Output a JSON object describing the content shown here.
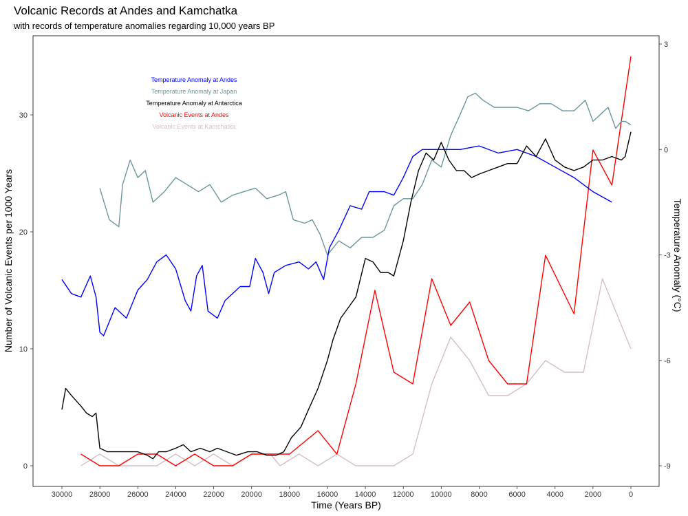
{
  "chart_data": {
    "type": "line",
    "title": "Volcanic Records at Andes and Kamchatka",
    "subtitle": "with records of temperature anomalies regarding 10,000 years BP",
    "xlabel": "Time (Years BP)",
    "ylabel_left": "Number of Volcanic Events per 1000 Years",
    "ylabel_right": "Temperature Anomaly (°C)",
    "x_reversed": true,
    "xlim": [
      30000,
      0
    ],
    "ylim_left": [
      0,
      35
    ],
    "ylim_right": [
      -9,
      3
    ],
    "x_ticks": [
      30000,
      28000,
      26000,
      24000,
      22000,
      20000,
      18000,
      16000,
      14000,
      12000,
      10000,
      8000,
      6000,
      4000,
      2000,
      0
    ],
    "y_ticks_left": [
      0,
      10,
      20,
      30
    ],
    "y_ticks_right": [
      -9,
      -6,
      -3,
      0,
      3
    ],
    "grid": false,
    "legend_position": "top-left",
    "series": [
      {
        "name": "Temperature Anomaly at Andes",
        "axis": "right",
        "color": "#0000ff",
        "points": [
          [
            30000,
            -3.7
          ],
          [
            29500,
            -4.1
          ],
          [
            29000,
            -4.2
          ],
          [
            28500,
            -3.6
          ],
          [
            28200,
            -4.2
          ],
          [
            28000,
            -5.2
          ],
          [
            27800,
            -5.3
          ],
          [
            27200,
            -4.5
          ],
          [
            26600,
            -4.8
          ],
          [
            26000,
            -4.0
          ],
          [
            25500,
            -3.7
          ],
          [
            25000,
            -3.2
          ],
          [
            24500,
            -3.0
          ],
          [
            24000,
            -3.4
          ],
          [
            23500,
            -4.3
          ],
          [
            23200,
            -4.6
          ],
          [
            22900,
            -3.6
          ],
          [
            22600,
            -3.3
          ],
          [
            22300,
            -4.6
          ],
          [
            21800,
            -4.8
          ],
          [
            21400,
            -4.3
          ],
          [
            20600,
            -3.9
          ],
          [
            20100,
            -3.9
          ],
          [
            19800,
            -3.1
          ],
          [
            19400,
            -3.5
          ],
          [
            19100,
            -4.1
          ],
          [
            18800,
            -3.5
          ],
          [
            18200,
            -3.3
          ],
          [
            17500,
            -3.2
          ],
          [
            17000,
            -3.4
          ],
          [
            16600,
            -3.2
          ],
          [
            16200,
            -3.7
          ],
          [
            15900,
            -2.8
          ],
          [
            15400,
            -2.3
          ],
          [
            14800,
            -1.6
          ],
          [
            14200,
            -1.7
          ],
          [
            13800,
            -1.2
          ],
          [
            13000,
            -1.2
          ],
          [
            12500,
            -1.3
          ],
          [
            12000,
            -0.8
          ],
          [
            11500,
            -0.2
          ],
          [
            11000,
            0.0
          ],
          [
            10000,
            0.0
          ],
          [
            9000,
            0.0
          ],
          [
            8000,
            0.1
          ],
          [
            7000,
            -0.1
          ],
          [
            6000,
            0.0
          ],
          [
            5000,
            -0.2
          ],
          [
            4000,
            -0.5
          ],
          [
            3000,
            -0.8
          ],
          [
            2000,
            -1.2
          ],
          [
            1000,
            -1.5
          ]
        ]
      },
      {
        "name": "Temperature Anomaly at Japan",
        "axis": "right",
        "color": "#6c969d",
        "points": [
          [
            28000,
            -1.1
          ],
          [
            27500,
            -2.0
          ],
          [
            27000,
            -2.2
          ],
          [
            26800,
            -1.0
          ],
          [
            26400,
            -0.3
          ],
          [
            26000,
            -0.8
          ],
          [
            25600,
            -0.6
          ],
          [
            25200,
            -1.5
          ],
          [
            24600,
            -1.2
          ],
          [
            24000,
            -0.8
          ],
          [
            23400,
            -1.0
          ],
          [
            22800,
            -1.2
          ],
          [
            22200,
            -1.0
          ],
          [
            21600,
            -1.5
          ],
          [
            21000,
            -1.3
          ],
          [
            20400,
            -1.2
          ],
          [
            19800,
            -1.1
          ],
          [
            19200,
            -1.4
          ],
          [
            18600,
            -1.3
          ],
          [
            18200,
            -1.2
          ],
          [
            17800,
            -2.0
          ],
          [
            17200,
            -2.1
          ],
          [
            16800,
            -2.0
          ],
          [
            16400,
            -2.4
          ],
          [
            16000,
            -3.0
          ],
          [
            15400,
            -2.6
          ],
          [
            14800,
            -2.8
          ],
          [
            14200,
            -2.5
          ],
          [
            13600,
            -2.5
          ],
          [
            13000,
            -2.3
          ],
          [
            12500,
            -1.6
          ],
          [
            12000,
            -1.4
          ],
          [
            11500,
            -1.4
          ],
          [
            11000,
            -1.0
          ],
          [
            10500,
            -0.3
          ],
          [
            10000,
            -0.5
          ],
          [
            9500,
            0.4
          ],
          [
            9000,
            1.0
          ],
          [
            8600,
            1.5
          ],
          [
            8200,
            1.6
          ],
          [
            7800,
            1.4
          ],
          [
            7200,
            1.2
          ],
          [
            6600,
            1.2
          ],
          [
            6000,
            1.2
          ],
          [
            5400,
            1.1
          ],
          [
            4800,
            1.3
          ],
          [
            4200,
            1.3
          ],
          [
            3600,
            1.1
          ],
          [
            3000,
            1.1
          ],
          [
            2400,
            1.4
          ],
          [
            2000,
            0.8
          ],
          [
            1600,
            1.0
          ],
          [
            1200,
            1.2
          ],
          [
            800,
            0.6
          ],
          [
            500,
            0.8
          ],
          [
            300,
            0.8
          ],
          [
            0,
            0.7
          ]
        ]
      },
      {
        "name": "Temperature Anomaly at Antarctica",
        "axis": "right",
        "color": "#000000",
        "points": [
          [
            30000,
            -7.4
          ],
          [
            29800,
            -6.8
          ],
          [
            29500,
            -7.0
          ],
          [
            29000,
            -7.3
          ],
          [
            28700,
            -7.5
          ],
          [
            28400,
            -7.6
          ],
          [
            28200,
            -7.5
          ],
          [
            28000,
            -8.5
          ],
          [
            27600,
            -8.6
          ],
          [
            27000,
            -8.6
          ],
          [
            26500,
            -8.6
          ],
          [
            26000,
            -8.6
          ],
          [
            25500,
            -8.7
          ],
          [
            25200,
            -8.8
          ],
          [
            24900,
            -8.6
          ],
          [
            24500,
            -8.6
          ],
          [
            24000,
            -8.5
          ],
          [
            23600,
            -8.4
          ],
          [
            23200,
            -8.6
          ],
          [
            22700,
            -8.5
          ],
          [
            22200,
            -8.6
          ],
          [
            21800,
            -8.5
          ],
          [
            21300,
            -8.6
          ],
          [
            20800,
            -8.7
          ],
          [
            20200,
            -8.6
          ],
          [
            19700,
            -8.6
          ],
          [
            19200,
            -8.7
          ],
          [
            18700,
            -8.7
          ],
          [
            18300,
            -8.6
          ],
          [
            17900,
            -8.2
          ],
          [
            17400,
            -7.9
          ],
          [
            17000,
            -7.4
          ],
          [
            16500,
            -6.8
          ],
          [
            16000,
            -6.0
          ],
          [
            15700,
            -5.4
          ],
          [
            15300,
            -4.8
          ],
          [
            14900,
            -4.5
          ],
          [
            14500,
            -4.2
          ],
          [
            14000,
            -3.1
          ],
          [
            13600,
            -3.2
          ],
          [
            13200,
            -3.5
          ],
          [
            12800,
            -3.5
          ],
          [
            12500,
            -3.6
          ],
          [
            12000,
            -2.6
          ],
          [
            11600,
            -1.5
          ],
          [
            11200,
            -0.6
          ],
          [
            10800,
            -0.1
          ],
          [
            10400,
            -0.3
          ],
          [
            10000,
            0.2
          ],
          [
            9600,
            -0.3
          ],
          [
            9200,
            -0.6
          ],
          [
            8800,
            -0.6
          ],
          [
            8400,
            -0.8
          ],
          [
            8000,
            -0.7
          ],
          [
            7500,
            -0.6
          ],
          [
            7000,
            -0.5
          ],
          [
            6500,
            -0.4
          ],
          [
            6000,
            -0.4
          ],
          [
            5500,
            0.1
          ],
          [
            5000,
            -0.2
          ],
          [
            4500,
            0.3
          ],
          [
            4000,
            -0.3
          ],
          [
            3500,
            -0.5
          ],
          [
            3000,
            -0.6
          ],
          [
            2500,
            -0.5
          ],
          [
            2000,
            -0.3
          ],
          [
            1500,
            -0.3
          ],
          [
            1000,
            -0.2
          ],
          [
            500,
            -0.3
          ],
          [
            300,
            -0.2
          ],
          [
            0,
            0.5
          ]
        ]
      },
      {
        "name": "Volcanic Events at Andes",
        "axis": "left",
        "color": "#ff0000",
        "points": [
          [
            29000,
            1
          ],
          [
            28000,
            0
          ],
          [
            27000,
            0
          ],
          [
            26000,
            1
          ],
          [
            25000,
            1
          ],
          [
            24000,
            0
          ],
          [
            23000,
            1
          ],
          [
            22000,
            0
          ],
          [
            21000,
            0
          ],
          [
            20000,
            1
          ],
          [
            19000,
            1
          ],
          [
            18000,
            1
          ],
          [
            16500,
            3
          ],
          [
            15500,
            1
          ],
          [
            14500,
            7
          ],
          [
            13500,
            15
          ],
          [
            12500,
            8
          ],
          [
            11500,
            7
          ],
          [
            10500,
            16
          ],
          [
            9500,
            12
          ],
          [
            8500,
            14
          ],
          [
            7500,
            9
          ],
          [
            6500,
            7
          ],
          [
            5500,
            7
          ],
          [
            4500,
            18
          ],
          [
            3000,
            13
          ],
          [
            2000,
            27
          ],
          [
            1000,
            24
          ],
          [
            0,
            35
          ]
        ]
      },
      {
        "name": "Volcanic Events at Kamchatka",
        "axis": "left",
        "color": "#d3bfc8",
        "points": [
          [
            29000,
            0
          ],
          [
            28000,
            1
          ],
          [
            27000,
            0
          ],
          [
            26000,
            0
          ],
          [
            25000,
            0
          ],
          [
            24000,
            1
          ],
          [
            23000,
            0
          ],
          [
            22000,
            1
          ],
          [
            21000,
            0
          ],
          [
            20000,
            1
          ],
          [
            19000,
            1
          ],
          [
            18500,
            0
          ],
          [
            17500,
            1
          ],
          [
            16500,
            0
          ],
          [
            15500,
            1
          ],
          [
            14500,
            0
          ],
          [
            13500,
            0
          ],
          [
            12500,
            0
          ],
          [
            11500,
            1
          ],
          [
            10500,
            7
          ],
          [
            9500,
            11
          ],
          [
            8500,
            9
          ],
          [
            7500,
            6
          ],
          [
            6500,
            6
          ],
          [
            5500,
            7
          ],
          [
            4500,
            9
          ],
          [
            3500,
            8
          ],
          [
            2500,
            8
          ],
          [
            1500,
            16
          ],
          [
            0,
            10
          ]
        ]
      }
    ]
  }
}
